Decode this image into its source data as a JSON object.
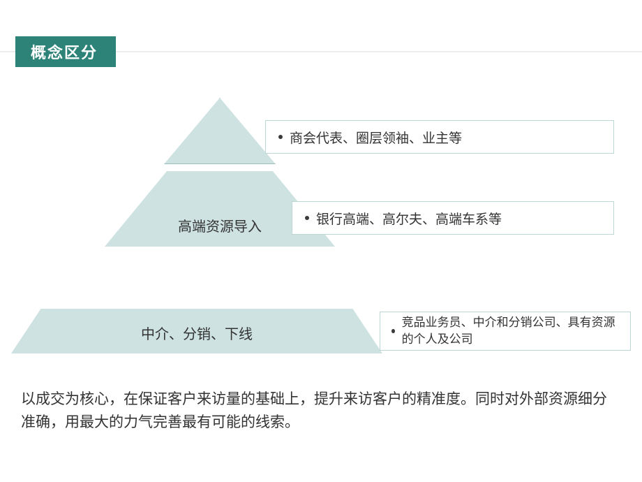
{
  "colors": {
    "header_bg": "#2e8378",
    "header_text": "#ffffff",
    "shape_fill": "#cde2e1",
    "shape_border": "#9bbdbb",
    "desc_border": "#bcd6d4",
    "dot": "#3a3a3a",
    "body_text": "#333333",
    "gray_line": "#d9d9d9"
  },
  "fonts": {
    "title_size": 22,
    "label_size": 20,
    "desc_size": 19,
    "footer_size": 21
  },
  "header": {
    "title": "概念区分"
  },
  "pyramid": {
    "levels": [
      {
        "label": "",
        "desc": "商会代表、圈层领袖、业主等"
      },
      {
        "label": "高端资源导入",
        "desc": "银行高端、高尔夫、高端车系等"
      }
    ]
  },
  "bottom": {
    "label": "中介、分销、下线",
    "desc": "竞品业务员、中介和分销公司、具有资源的个人及公司"
  },
  "footer": "以成交为核心，在保证客户来访量的基础上，提升来访客户的精准度。同时对外部资源细分准确，用最大的力气完善最有可能的线索。"
}
